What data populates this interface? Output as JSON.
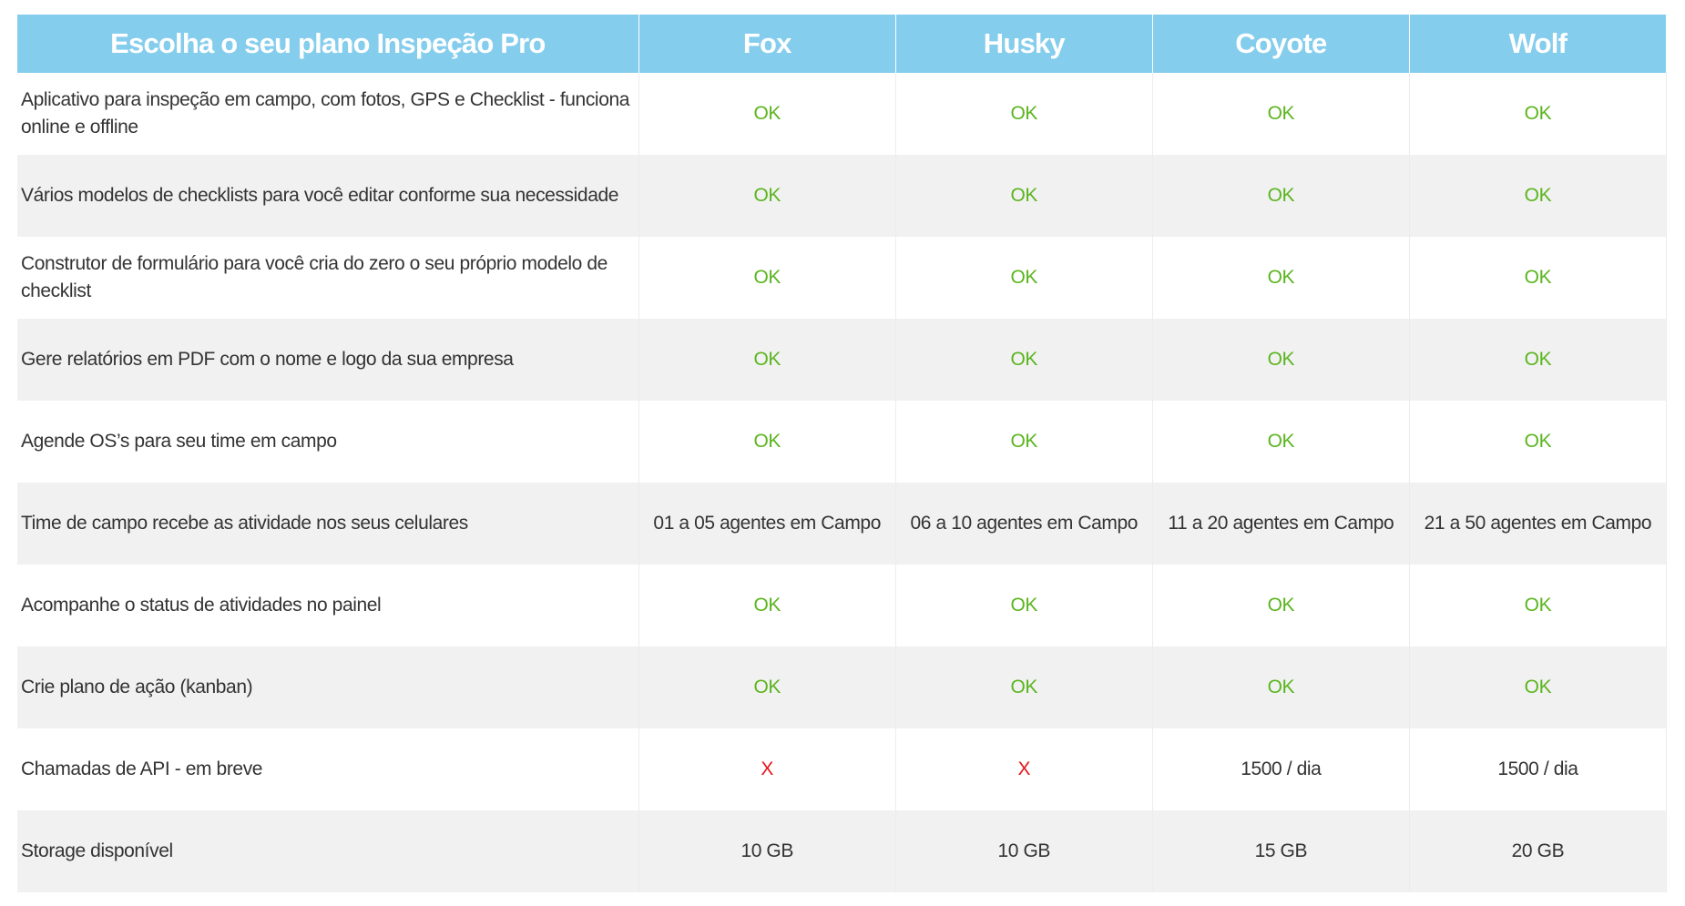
{
  "header": {
    "title": "Escolha o seu plano Inspeção Pro",
    "plans": [
      "Fox",
      "Husky",
      "Coyote",
      "Wolf"
    ]
  },
  "colors": {
    "header_bg": "#84cdec",
    "ok": "#5bb51f",
    "no": "#e8141c",
    "alt_row": "#f1f1f1"
  },
  "rows": [
    {
      "feature": "Aplicativo para inspeção em campo, com fotos, GPS e Checklist - funciona online e offline",
      "values": [
        "OK",
        "OK",
        "OK",
        "OK"
      ]
    },
    {
      "feature": "Vários modelos de checklists para você editar conforme sua necessidade",
      "values": [
        "OK",
        "OK",
        "OK",
        "OK"
      ]
    },
    {
      "feature": "Construtor de formulário para você cria do zero o seu próprio modelo de checklist",
      "values": [
        "OK",
        "OK",
        "OK",
        "OK"
      ]
    },
    {
      "feature": "Gere relatórios em PDF com o nome e logo da sua empresa",
      "values": [
        "OK",
        "OK",
        "OK",
        "OK"
      ]
    },
    {
      "feature": "Agende OS’s para seu time em campo",
      "values": [
        "OK",
        "OK",
        "OK",
        "OK"
      ]
    },
    {
      "feature": "Time de campo recebe as atividade nos seus celulares",
      "values": [
        "01 a 05 agentes em Campo",
        "06 a 10 agentes em Campo",
        "11 a 20 agentes em Campo",
        "21 a 50 agentes em Campo"
      ]
    },
    {
      "feature": "Acompanhe o status de atividades no painel",
      "values": [
        "OK",
        "OK",
        "OK",
        "OK"
      ]
    },
    {
      "feature": "Crie plano de ação (kanban)",
      "values": [
        "OK",
        "OK",
        "OK",
        "OK"
      ]
    },
    {
      "feature": "Chamadas de API - em breve",
      "values": [
        "X",
        "X",
        "1500 / dia",
        "1500 / dia"
      ]
    },
    {
      "feature": "Storage disponível",
      "values": [
        "10 GB",
        "10 GB",
        "15 GB",
        "20 GB"
      ]
    }
  ]
}
